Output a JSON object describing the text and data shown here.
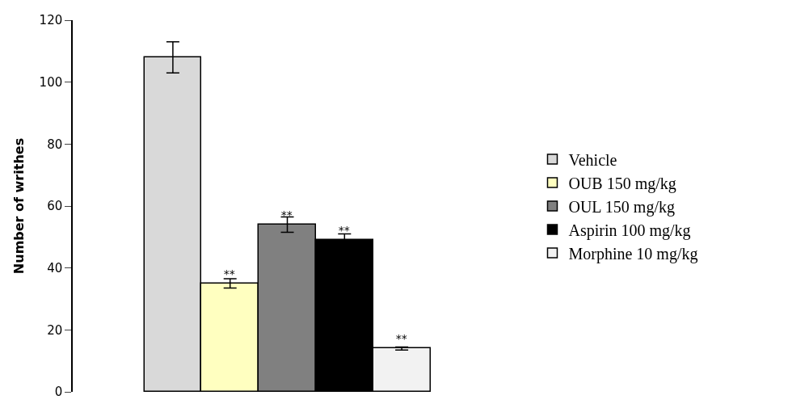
{
  "chart_data": {
    "type": "bar",
    "ylabel": "Number of writhes",
    "categories": [
      null
    ],
    "series": [
      {
        "name": "Vehicle",
        "color": "#d9d9d9",
        "values": [
          108
        ],
        "errors": [
          5
        ],
        "value_labels": [
          null
        ]
      },
      {
        "name": "OUB 150 mg/kg",
        "color": "#ffffc0",
        "values": [
          35
        ],
        "errors": [
          1.5
        ],
        "value_labels": [
          "**"
        ]
      },
      {
        "name": "OUL 150 mg/kg",
        "color": "#808080",
        "values": [
          54
        ],
        "errors": [
          2.5
        ],
        "value_labels": [
          "**"
        ]
      },
      {
        "name": "Aspirin 100 mg/kg",
        "color": "#000000",
        "values": [
          49
        ],
        "errors": [
          2
        ],
        "value_labels": [
          "**"
        ]
      },
      {
        "name": "Morphine 10 mg/kg",
        "color": "#f2f2f2",
        "values": [
          14
        ],
        "errors": [
          0.5
        ],
        "value_labels": [
          "**"
        ]
      }
    ],
    "ylim": [
      0,
      120
    ],
    "yticks": [
      0,
      20,
      40,
      60,
      80,
      100,
      120
    ],
    "legend": "right"
  }
}
